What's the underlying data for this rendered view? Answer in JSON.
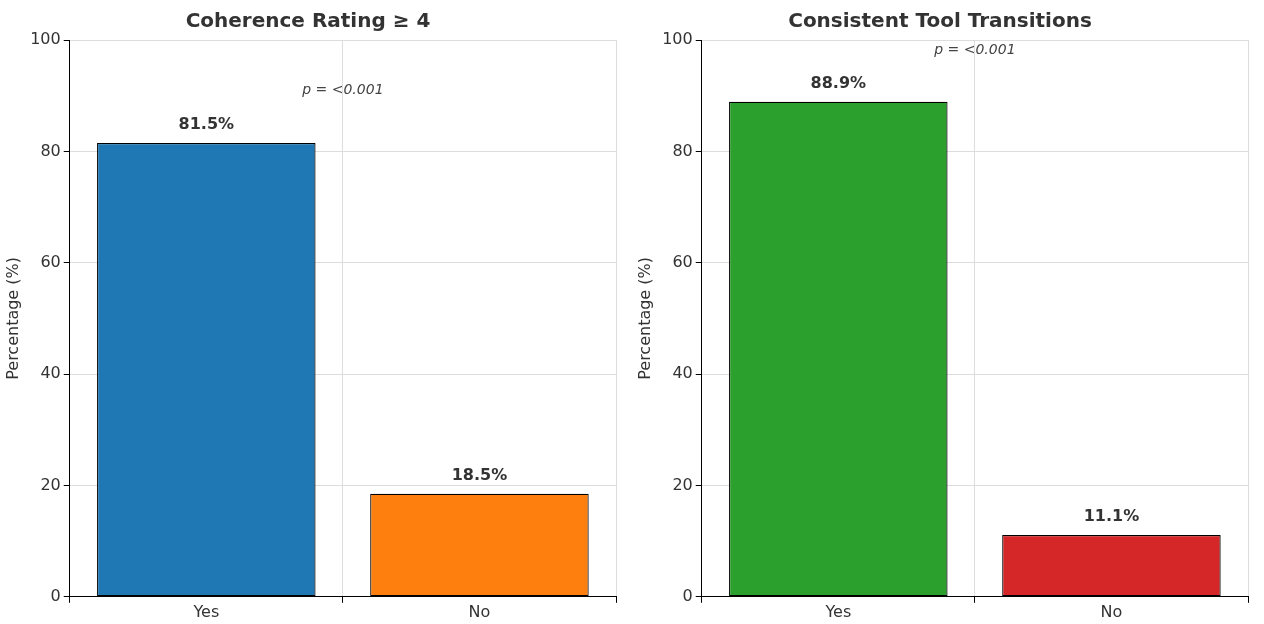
{
  "chart_data": [
    {
      "type": "bar",
      "title": "Coherence Rating ≥ 4",
      "ylabel": "Percentage (%)",
      "categories": [
        "Yes",
        "No"
      ],
      "values": [
        81.5,
        18.5
      ],
      "colors": [
        "#1f77b4",
        "#ff7f0e"
      ],
      "value_labels": [
        "81.5%",
        "18.5%"
      ],
      "ylim": [
        0,
        100
      ],
      "yticks": [
        0,
        20,
        40,
        60,
        80,
        100
      ],
      "grid": true,
      "annotations": [
        "p = <0.001"
      ]
    },
    {
      "type": "bar",
      "title": "Consistent Tool Transitions",
      "ylabel": "Percentage (%)",
      "categories": [
        "Yes",
        "No"
      ],
      "values": [
        88.9,
        11.1
      ],
      "colors": [
        "#2ca02c",
        "#d62728"
      ],
      "value_labels": [
        "88.9%",
        "11.1%"
      ],
      "ylim": [
        0,
        100
      ],
      "yticks": [
        0,
        20,
        40,
        60,
        80,
        100
      ],
      "grid": true,
      "annotations": [
        "p = <0.001"
      ]
    }
  ]
}
